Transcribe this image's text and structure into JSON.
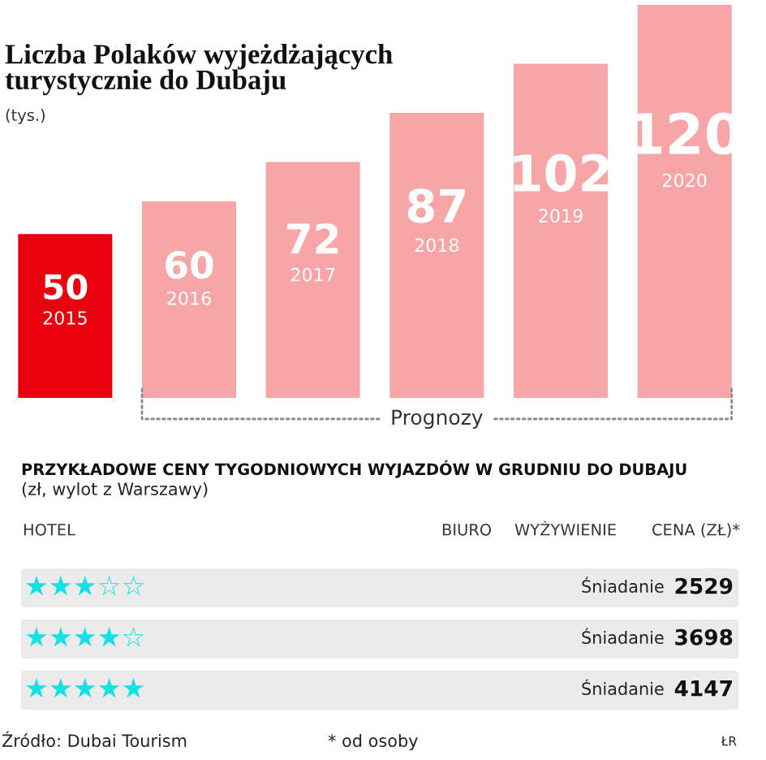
{
  "chart_data": [
    {
      "type": "bar",
      "title": "Liczba Polaków wyjeżdżających\nturystycznie do Dubaju",
      "subtitle": "(tys.)",
      "categories": [
        "2015",
        "2016",
        "2017",
        "2018",
        "2019",
        "2020"
      ],
      "values": [
        50,
        60,
        72,
        87,
        102,
        120
      ],
      "colors": [
        "#e8000d",
        "#f8a5a8",
        "#f8a5a8",
        "#f8a5a8",
        "#f8a5a8",
        "#f8a5a8"
      ],
      "data_labels": true,
      "tick_labels": "x",
      "annotations": [
        "Prognozy"
      ]
    },
    {
      "type": "other",
      "title": "PRZYKŁADOWE CENY TYGODNIOWYCH WYJAZDÓW W GRUDNIU DO DUBAJU",
      "subtitle": "(zł, wylot z Warszawy)",
      "categories": [
        "HOTEL",
        "BIURO",
        "WYŻYWIENIE",
        "CENA (ZŁ)*"
      ],
      "cell_labels": [
        [
          "★★★☆☆",
          null,
          "Śniadanie",
          "2529"
        ],
        [
          "★★★★☆",
          null,
          "Śniadanie",
          "3698"
        ],
        [
          "★★★★★",
          null,
          "Śniadanie",
          "4147"
        ]
      ],
      "annotations": [
        "Źródło: Dubai Tourism",
        "* od osoby",
        "ŁR"
      ]
    }
  ]
}
